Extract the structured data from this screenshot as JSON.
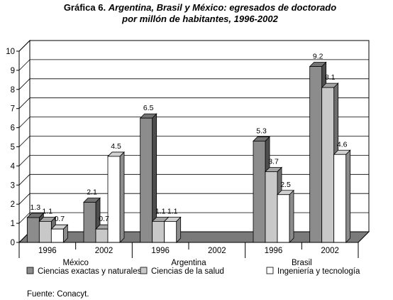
{
  "chart_data": {
    "type": "bar",
    "title_prefix": "Gráfica 6.",
    "title_line1": "Argentina, Brasil y México: egresados de doctorado",
    "title_line2": "por millón de habitantes, 1996-2002",
    "groups": [
      "México",
      "Argentina",
      "Brasil"
    ],
    "categories": [
      "1996",
      "2002",
      "1996",
      "2002",
      "1996",
      "2002"
    ],
    "series": [
      {
        "name": "Ciencias exactas y naturales",
        "color": "#8c8c8c",
        "values": [
          1.3,
          2.1,
          6.5,
          null,
          5.3,
          9.2
        ]
      },
      {
        "name": "Ciencias de la salud",
        "color": "#c8c8c8",
        "values": [
          1.1,
          0.7,
          1.1,
          null,
          3.7,
          8.1
        ]
      },
      {
        "name": "Ingeniería y tecnología",
        "color": "#ffffff",
        "values": [
          0.7,
          4.5,
          1.1,
          null,
          2.5,
          4.6
        ]
      }
    ],
    "value_labels": [
      [
        "1.3",
        "2.1",
        "6.5",
        null,
        "5.3",
        "9.2"
      ],
      [
        "1.1",
        "0.7",
        "1.1",
        null,
        "3.7",
        "8.1"
      ],
      [
        "0.7",
        "4.5",
        "1.1",
        null,
        "2.5",
        "4.6"
      ]
    ],
    "y_ticks": [
      "0",
      "1",
      "2",
      "3",
      "4",
      "5",
      "6",
      "7",
      "8",
      "9",
      "10"
    ],
    "ylim": [
      0,
      10
    ],
    "grid": true,
    "legend_position": "bottom"
  },
  "source": "Fuente: Conacyt."
}
